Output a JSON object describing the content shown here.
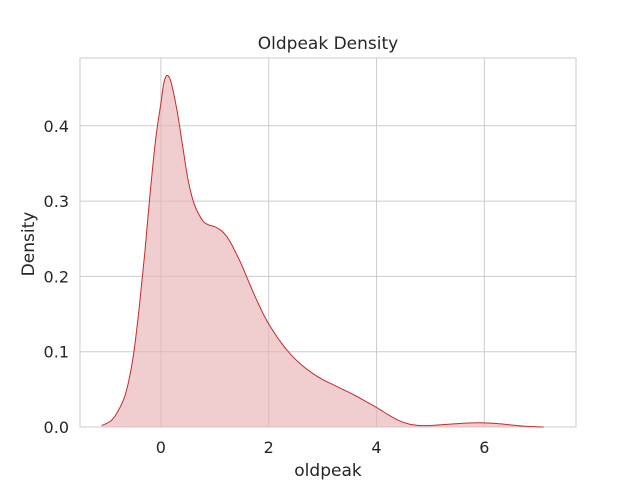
{
  "chart_data": {
    "type": "area",
    "title": "Oldpeak Density",
    "xlabel": "oldpeak",
    "ylabel": "Density",
    "xlim": [
      -1.5,
      7.7
    ],
    "ylim": [
      0.0,
      0.49
    ],
    "xticks": [
      0,
      2,
      4,
      6
    ],
    "yticks": [
      0.0,
      0.1,
      0.2,
      0.3,
      0.4
    ],
    "xtick_labels": [
      "0",
      "2",
      "4",
      "6"
    ],
    "ytick_labels": [
      "0.0",
      "0.1",
      "0.2",
      "0.3",
      "0.4"
    ],
    "grid": true,
    "series": [
      {
        "line_color": "#c62b2b",
        "fill_color": "#e8b3b6",
        "fill_opacity": 0.65,
        "x": [
          -1.1,
          -0.9,
          -0.7,
          -0.6,
          -0.5,
          -0.4,
          -0.3,
          -0.2,
          -0.1,
          0.0,
          0.05,
          0.1,
          0.15,
          0.2,
          0.3,
          0.4,
          0.5,
          0.6,
          0.7,
          0.8,
          0.9,
          1.0,
          1.1,
          1.2,
          1.3,
          1.4,
          1.5,
          1.6,
          1.7,
          1.8,
          1.9,
          2.0,
          2.2,
          2.4,
          2.6,
          2.8,
          3.0,
          3.2,
          3.4,
          3.6,
          3.8,
          4.0,
          4.2,
          4.4,
          4.6,
          4.8,
          5.0,
          5.2,
          5.4,
          5.6,
          5.8,
          6.0,
          6.2,
          6.4,
          6.6,
          6.8,
          7.0,
          7.1
        ],
        "y": [
          0.002,
          0.01,
          0.035,
          0.06,
          0.1,
          0.16,
          0.23,
          0.31,
          0.38,
          0.43,
          0.455,
          0.466,
          0.465,
          0.455,
          0.42,
          0.375,
          0.33,
          0.3,
          0.283,
          0.272,
          0.268,
          0.266,
          0.262,
          0.255,
          0.244,
          0.23,
          0.215,
          0.198,
          0.181,
          0.165,
          0.15,
          0.137,
          0.115,
          0.097,
          0.083,
          0.072,
          0.063,
          0.056,
          0.049,
          0.042,
          0.034,
          0.026,
          0.017,
          0.009,
          0.004,
          0.002,
          0.002,
          0.003,
          0.004,
          0.005,
          0.0055,
          0.0055,
          0.0048,
          0.0035,
          0.002,
          0.0008,
          0.0002,
          0.0
        ]
      }
    ]
  }
}
